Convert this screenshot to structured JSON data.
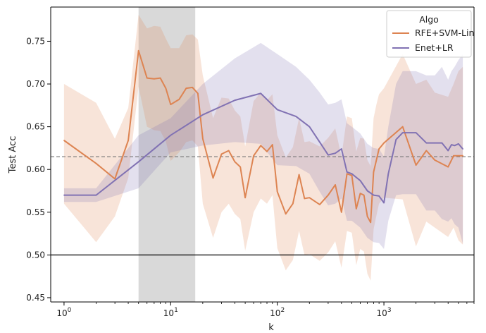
{
  "chart_data": {
    "type": "line",
    "xlabel": "k",
    "ylabel": "Test Acc",
    "xscale": "log",
    "xlim": [
      0.75,
      7000
    ],
    "ylim": [
      0.445,
      0.79
    ],
    "grid": false,
    "legend": {
      "title": "Algo",
      "placement": "top-right"
    },
    "x_ticks": [
      {
        "value": 1,
        "base": "10",
        "exp": "0"
      },
      {
        "value": 10,
        "base": "10",
        "exp": "1"
      },
      {
        "value": 100,
        "base": "10",
        "exp": "2"
      },
      {
        "value": 1000,
        "base": "10",
        "exp": "3"
      }
    ],
    "y_ticks": [
      {
        "value": 0.45,
        "label": "0.45"
      },
      {
        "value": 0.5,
        "label": "0.50"
      },
      {
        "value": 0.55,
        "label": "0.55"
      },
      {
        "value": 0.6,
        "label": "0.60"
      },
      {
        "value": 0.65,
        "label": "0.65"
      },
      {
        "value": 0.7,
        "label": "0.70"
      },
      {
        "value": 0.75,
        "label": "0.75"
      }
    ],
    "highlight_span": {
      "x_start": 5,
      "x_end": 17,
      "color": "#d9d9d9"
    },
    "reference_lines": [
      {
        "y": 0.615,
        "style": "dashed",
        "color": "#777777"
      },
      {
        "y": 0.5,
        "style": "solid",
        "color": "#000000"
      }
    ],
    "series": [
      {
        "name": "RFE+SVM-Lin",
        "color": "#dd8452",
        "x": [
          1,
          2,
          3,
          4,
          5,
          6,
          7,
          8,
          9,
          10,
          12,
          14,
          16,
          18,
          20,
          25,
          30,
          35,
          40,
          45,
          50,
          60,
          70,
          80,
          90,
          100,
          120,
          140,
          160,
          180,
          200,
          250,
          300,
          350,
          400,
          450,
          500,
          550,
          600,
          650,
          700,
          750,
          800,
          850,
          900,
          1000,
          1500,
          2000,
          2500,
          3000,
          4000,
          4500,
          5000,
          5500
        ],
        "y": [
          0.634,
          0.607,
          0.589,
          0.634,
          0.739,
          0.707,
          0.706,
          0.707,
          0.695,
          0.676,
          0.682,
          0.695,
          0.696,
          0.689,
          0.636,
          0.59,
          0.618,
          0.622,
          0.609,
          0.603,
          0.567,
          0.616,
          0.628,
          0.621,
          0.629,
          0.574,
          0.548,
          0.56,
          0.594,
          0.566,
          0.567,
          0.559,
          0.57,
          0.582,
          0.55,
          0.595,
          0.593,
          0.554,
          0.572,
          0.57,
          0.545,
          0.538,
          0.597,
          0.611,
          0.624,
          0.631,
          0.65,
          0.605,
          0.622,
          0.611,
          0.603,
          0.616,
          0.616,
          0.616
        ],
        "band_upper": [
          0.7,
          0.678,
          0.636,
          0.672,
          0.781,
          0.765,
          0.768,
          0.767,
          0.753,
          0.742,
          0.742,
          0.757,
          0.758,
          0.752,
          0.71,
          0.66,
          0.684,
          0.683,
          0.669,
          0.662,
          0.627,
          0.68,
          0.69,
          0.681,
          0.688,
          0.64,
          0.614,
          0.626,
          0.66,
          0.632,
          0.633,
          0.627,
          0.637,
          0.648,
          0.615,
          0.662,
          0.66,
          0.621,
          0.637,
          0.636,
          0.611,
          0.604,
          0.66,
          0.676,
          0.688,
          0.695,
          0.735,
          0.7,
          0.705,
          0.69,
          0.685,
          0.7,
          0.715,
          0.72
        ],
        "band_lower": [
          0.56,
          0.515,
          0.545,
          0.59,
          0.697,
          0.65,
          0.646,
          0.645,
          0.633,
          0.61,
          0.62,
          0.632,
          0.634,
          0.627,
          0.56,
          0.52,
          0.55,
          0.56,
          0.548,
          0.542,
          0.505,
          0.55,
          0.566,
          0.56,
          0.57,
          0.508,
          0.482,
          0.494,
          0.528,
          0.5,
          0.501,
          0.493,
          0.503,
          0.516,
          0.485,
          0.528,
          0.526,
          0.488,
          0.507,
          0.504,
          0.478,
          0.47,
          0.53,
          0.546,
          0.56,
          0.567,
          0.565,
          0.51,
          0.539,
          0.532,
          0.521,
          0.532,
          0.517,
          0.512
        ]
      },
      {
        "name": "Enet+LR",
        "color": "#8172b3",
        "x": [
          1,
          2,
          5,
          10,
          20,
          40,
          70,
          100,
          150,
          200,
          250,
          300,
          350,
          400,
          450,
          500,
          600,
          700,
          800,
          900,
          1000,
          1100,
          1300,
          1500,
          2000,
          2500,
          3000,
          3500,
          4000,
          4300,
          4600,
          5000,
          5500
        ],
        "y": [
          0.57,
          0.57,
          0.609,
          0.64,
          0.664,
          0.681,
          0.689,
          0.67,
          0.662,
          0.65,
          0.632,
          0.617,
          0.619,
          0.624,
          0.597,
          0.595,
          0.587,
          0.575,
          0.57,
          0.569,
          0.561,
          0.595,
          0.635,
          0.643,
          0.643,
          0.631,
          0.631,
          0.631,
          0.622,
          0.629,
          0.628,
          0.63,
          0.624
        ],
        "band_upper": [
          0.578,
          0.578,
          0.64,
          0.66,
          0.7,
          0.73,
          0.748,
          0.735,
          0.72,
          0.705,
          0.69,
          0.676,
          0.678,
          0.682,
          0.654,
          0.65,
          0.642,
          0.63,
          0.625,
          0.624,
          0.615,
          0.65,
          0.7,
          0.715,
          0.715,
          0.71,
          0.71,
          0.72,
          0.705,
          0.715,
          0.72,
          0.728,
          0.735
        ],
        "band_lower": [
          0.562,
          0.562,
          0.578,
          0.62,
          0.628,
          0.632,
          0.63,
          0.605,
          0.604,
          0.595,
          0.574,
          0.558,
          0.56,
          0.566,
          0.54,
          0.54,
          0.532,
          0.52,
          0.515,
          0.514,
          0.507,
          0.54,
          0.57,
          0.571,
          0.571,
          0.552,
          0.552,
          0.542,
          0.539,
          0.543,
          0.536,
          0.532,
          0.513
        ]
      }
    ]
  }
}
